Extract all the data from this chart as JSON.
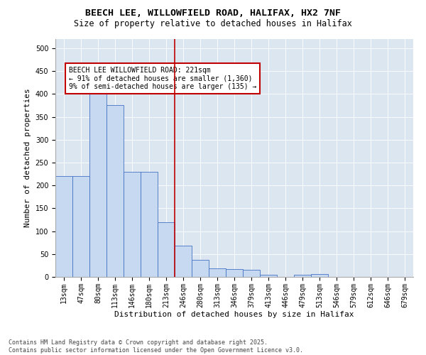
{
  "title1": "BEECH LEE, WILLOWFIELD ROAD, HALIFAX, HX2 7NF",
  "title2": "Size of property relative to detached houses in Halifax",
  "xlabel": "Distribution of detached houses by size in Halifax",
  "ylabel": "Number of detached properties",
  "bar_labels": [
    "13sqm",
    "47sqm",
    "80sqm",
    "113sqm",
    "146sqm",
    "180sqm",
    "213sqm",
    "246sqm",
    "280sqm",
    "313sqm",
    "346sqm",
    "379sqm",
    "413sqm",
    "446sqm",
    "479sqm",
    "513sqm",
    "546sqm",
    "579sqm",
    "612sqm",
    "646sqm",
    "679sqm"
  ],
  "bar_values": [
    220,
    220,
    405,
    375,
    230,
    230,
    120,
    68,
    38,
    18,
    17,
    15,
    4,
    0,
    5,
    6,
    0,
    0,
    0,
    0,
    0
  ],
  "bar_color": "#c6d9f0",
  "bar_edgecolor": "#4472c4",
  "vline_x_idx": 6,
  "vline_color": "#c00000",
  "annotation_text": "BEECH LEE WILLOWFIELD ROAD: 221sqm\n← 91% of detached houses are smaller (1,360)\n9% of semi-detached houses are larger (135) →",
  "annotation_boxcolor": "white",
  "annotation_edgecolor": "#c00000",
  "ylim": [
    0,
    520
  ],
  "yticks": [
    0,
    50,
    100,
    150,
    200,
    250,
    300,
    350,
    400,
    450,
    500
  ],
  "background_color": "#dce6f1",
  "footer_text": "Contains HM Land Registry data © Crown copyright and database right 2025.\nContains public sector information licensed under the Open Government Licence v3.0.",
  "title_fontsize": 9.5,
  "subtitle_fontsize": 8.5,
  "axis_label_fontsize": 8,
  "tick_fontsize": 7,
  "annotation_fontsize": 7,
  "footer_fontsize": 6
}
